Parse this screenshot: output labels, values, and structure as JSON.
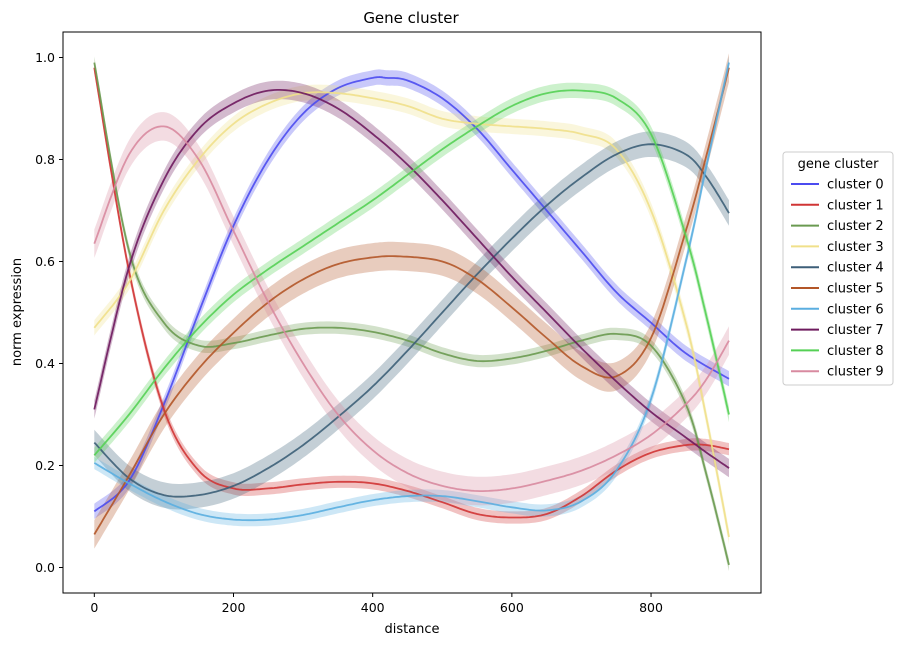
{
  "chart_data": {
    "type": "line",
    "title": "Gene cluster",
    "xlabel": "distance",
    "ylabel": "norm expression",
    "xlim": [
      -45,
      958
    ],
    "ylim": [
      -0.05,
      1.05
    ],
    "xticks": [
      0,
      200,
      400,
      600,
      800
    ],
    "xtick_labels": [
      "0",
      "200",
      "400",
      "600",
      "800"
    ],
    "yticks": [
      0.0,
      0.2,
      0.4,
      0.6,
      0.8,
      1.0
    ],
    "ytick_labels": [
      "0.0",
      "0.2",
      "0.4",
      "0.6",
      "0.8",
      "1.0"
    ],
    "grid": false,
    "legend": {
      "title": "gene cluster",
      "placement": "right-outside"
    },
    "band": "shaded confidence band around each line",
    "series": [
      {
        "name": "cluster 0",
        "color": "#4b4bf0",
        "band_half_width": 0.015,
        "x": [
          0,
          50,
          100,
          150,
          200,
          250,
          300,
          350,
          400,
          420,
          450,
          500,
          550,
          600,
          650,
          700,
          750,
          800,
          850,
          912
        ],
        "y": [
          0.11,
          0.17,
          0.32,
          0.5,
          0.67,
          0.8,
          0.89,
          0.94,
          0.96,
          0.96,
          0.955,
          0.92,
          0.86,
          0.78,
          0.7,
          0.62,
          0.54,
          0.48,
          0.42,
          0.37
        ]
      },
      {
        "name": "cluster 1",
        "color": "#d03535",
        "band_half_width": 0.012,
        "x": [
          0,
          50,
          100,
          150,
          200,
          250,
          300,
          350,
          400,
          450,
          500,
          550,
          600,
          650,
          700,
          750,
          800,
          850,
          880,
          912
        ],
        "y": [
          0.98,
          0.58,
          0.31,
          0.19,
          0.155,
          0.155,
          0.163,
          0.168,
          0.165,
          0.15,
          0.128,
          0.105,
          0.098,
          0.105,
          0.14,
          0.19,
          0.225,
          0.24,
          0.24,
          0.232
        ]
      },
      {
        "name": "cluster 2",
        "color": "#6a9a50",
        "band_half_width": 0.012,
        "x": [
          0,
          50,
          100,
          150,
          200,
          250,
          300,
          350,
          400,
          450,
          500,
          550,
          600,
          650,
          700,
          750,
          800,
          850,
          880,
          912
        ],
        "y": [
          0.99,
          0.62,
          0.48,
          0.435,
          0.44,
          0.455,
          0.468,
          0.47,
          0.462,
          0.445,
          0.42,
          0.405,
          0.41,
          0.425,
          0.445,
          0.458,
          0.435,
          0.32,
          0.18,
          0.005
        ]
      },
      {
        "name": "cluster 3",
        "color": "#f0e08a",
        "band_half_width": 0.015,
        "x": [
          0,
          50,
          100,
          150,
          200,
          250,
          300,
          350,
          400,
          450,
          500,
          550,
          600,
          650,
          700,
          750,
          800,
          850,
          880,
          912
        ],
        "y": [
          0.47,
          0.56,
          0.7,
          0.8,
          0.87,
          0.91,
          0.93,
          0.93,
          0.92,
          0.905,
          0.88,
          0.87,
          0.865,
          0.86,
          0.85,
          0.82,
          0.7,
          0.48,
          0.29,
          0.06
        ]
      },
      {
        "name": "cluster 4",
        "color": "#3d5f78",
        "band_half_width": 0.025,
        "x": [
          0,
          50,
          100,
          150,
          200,
          250,
          300,
          350,
          400,
          450,
          500,
          550,
          600,
          650,
          700,
          750,
          800,
          850,
          880,
          912
        ],
        "y": [
          0.245,
          0.175,
          0.142,
          0.142,
          0.16,
          0.195,
          0.24,
          0.295,
          0.355,
          0.425,
          0.5,
          0.575,
          0.645,
          0.71,
          0.765,
          0.81,
          0.83,
          0.81,
          0.765,
          0.695
        ]
      },
      {
        "name": "cluster 5",
        "color": "#b35628",
        "band_half_width": 0.028,
        "x": [
          0,
          50,
          100,
          150,
          200,
          250,
          300,
          350,
          400,
          440,
          500,
          550,
          600,
          650,
          700,
          750,
          800,
          850,
          880,
          912
        ],
        "y": [
          0.065,
          0.18,
          0.3,
          0.39,
          0.46,
          0.52,
          0.565,
          0.595,
          0.608,
          0.61,
          0.6,
          0.565,
          0.51,
          0.45,
          0.395,
          0.375,
          0.45,
          0.66,
          0.81,
          0.98
        ]
      },
      {
        "name": "cluster 6",
        "color": "#5aaee0",
        "band_half_width": 0.012,
        "x": [
          0,
          50,
          100,
          150,
          200,
          250,
          300,
          350,
          400,
          450,
          500,
          550,
          600,
          650,
          700,
          750,
          800,
          850,
          880,
          912
        ],
        "y": [
          0.205,
          0.165,
          0.13,
          0.105,
          0.094,
          0.094,
          0.103,
          0.118,
          0.132,
          0.14,
          0.14,
          0.13,
          0.118,
          0.112,
          0.13,
          0.19,
          0.33,
          0.6,
          0.79,
          0.99
        ]
      },
      {
        "name": "cluster 7",
        "color": "#6e1a5e",
        "band_half_width": 0.018,
        "x": [
          0,
          50,
          100,
          150,
          200,
          250,
          300,
          350,
          400,
          450,
          500,
          550,
          600,
          650,
          700,
          750,
          800,
          850,
          880,
          912
        ],
        "y": [
          0.31,
          0.59,
          0.76,
          0.86,
          0.91,
          0.935,
          0.93,
          0.9,
          0.85,
          0.79,
          0.72,
          0.645,
          0.57,
          0.5,
          0.43,
          0.365,
          0.305,
          0.255,
          0.225,
          0.195
        ]
      },
      {
        "name": "cluster 8",
        "color": "#55d055",
        "band_half_width": 0.015,
        "x": [
          0,
          50,
          100,
          150,
          200,
          250,
          300,
          350,
          400,
          450,
          500,
          550,
          600,
          650,
          700,
          750,
          800,
          850,
          880,
          912
        ],
        "y": [
          0.22,
          0.3,
          0.39,
          0.47,
          0.535,
          0.585,
          0.63,
          0.675,
          0.72,
          0.77,
          0.82,
          0.865,
          0.905,
          0.93,
          0.935,
          0.92,
          0.85,
          0.65,
          0.49,
          0.3
        ]
      },
      {
        "name": "cluster 9",
        "color": "#d88aa0",
        "band_half_width": 0.028,
        "x": [
          0,
          50,
          100,
          150,
          200,
          250,
          300,
          350,
          400,
          450,
          500,
          550,
          600,
          650,
          700,
          750,
          800,
          850,
          880,
          912
        ],
        "y": [
          0.635,
          0.81,
          0.865,
          0.8,
          0.66,
          0.52,
          0.4,
          0.3,
          0.23,
          0.185,
          0.16,
          0.15,
          0.155,
          0.17,
          0.19,
          0.22,
          0.26,
          0.32,
          0.37,
          0.445
        ]
      }
    ]
  }
}
